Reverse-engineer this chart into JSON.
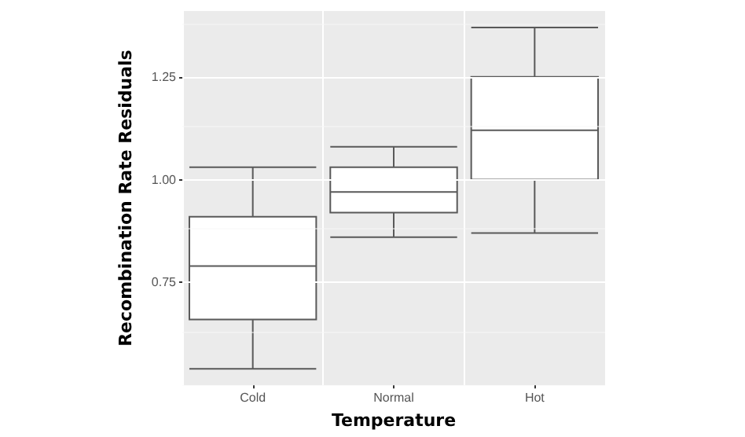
{
  "chart_data": {
    "type": "box",
    "xlabel": "Temperature",
    "ylabel": "Recombination Rate Residuals",
    "categories": [
      "Cold",
      "Normal",
      "Hot"
    ],
    "boxes": [
      {
        "low": 0.54,
        "q1": 0.66,
        "median": 0.79,
        "q3": 0.91,
        "high": 1.03
      },
      {
        "low": 0.86,
        "q1": 0.92,
        "median": 0.97,
        "q3": 1.03,
        "high": 1.08
      },
      {
        "low": 0.87,
        "q1": 1.0,
        "median": 1.12,
        "q3": 1.25,
        "high": 1.37
      }
    ],
    "color": "#595959",
    "ylim": [
      0.5,
      1.41
    ],
    "yticks": [
      {
        "value": 0.75,
        "label": "0.75"
      },
      {
        "value": 1.0,
        "label": "1.00"
      },
      {
        "value": 1.25,
        "label": "1.25"
      }
    ],
    "grid": true
  }
}
